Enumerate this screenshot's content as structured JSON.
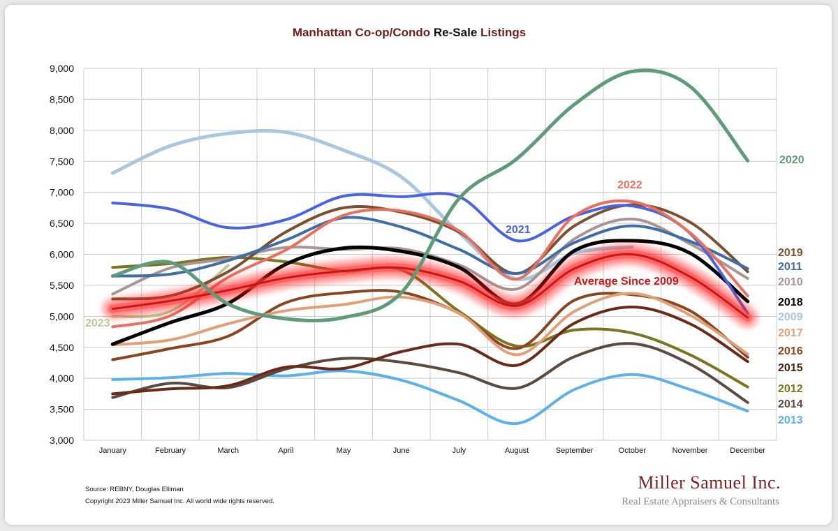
{
  "chart_data": {
    "type": "line",
    "title_parts": [
      "Manhattan Co-op/Condo",
      "Re-Sale",
      "Listings"
    ],
    "ylim": [
      3000,
      9000
    ],
    "yticks": [
      "3,000",
      "3,500",
      "4,000",
      "4,500",
      "5,000",
      "5,500",
      "6,000",
      "6,500",
      "7,000",
      "7,500",
      "8,000",
      "8,500",
      "9,000"
    ],
    "categories": [
      "January",
      "February",
      "March",
      "April",
      "May",
      "June",
      "July",
      "August",
      "September",
      "October",
      "November",
      "December"
    ],
    "grid": true,
    "series": [
      {
        "name": "2009",
        "color": "#a9c7df",
        "width": 5,
        "values": [
          7310,
          7750,
          7950,
          7970,
          7680,
          7250,
          6350,
          5600,
          6020,
          6120,
          null,
          null
        ]
      },
      {
        "name": "2013",
        "color": "#5eb0e8",
        "width": 4,
        "values": [
          3980,
          4010,
          4080,
          4040,
          4120,
          3970,
          3640,
          3270,
          3820,
          4060,
          3820,
          3470
        ]
      },
      {
        "name": "2014",
        "color": "#5a4a40",
        "width": 4,
        "values": [
          3690,
          3920,
          3850,
          4150,
          4320,
          4260,
          4090,
          3840,
          4350,
          4560,
          4230,
          3610
        ]
      },
      {
        "name": "2012",
        "color": "#7b7420",
        "width": 4,
        "values": [
          5790,
          5850,
          5950,
          5880,
          5730,
          5750,
          5080,
          4520,
          4780,
          4730,
          4380,
          3860
        ]
      },
      {
        "name": "2015",
        "color": "#6a2a18",
        "width": 4,
        "values": [
          3750,
          3830,
          3880,
          4180,
          4160,
          4430,
          4550,
          4210,
          4890,
          5150,
          4880,
          4270
        ]
      },
      {
        "name": "2016",
        "color": "#8a4520",
        "width": 4,
        "values": [
          4300,
          4480,
          4680,
          5220,
          5380,
          5390,
          5050,
          4480,
          5260,
          5350,
          5090,
          4340
        ]
      },
      {
        "name": "2017",
        "color": "#e0a078",
        "width": 4,
        "values": [
          4540,
          4620,
          4880,
          5090,
          5190,
          5310,
          5050,
          4380,
          5080,
          5370,
          5020,
          4390
        ]
      },
      {
        "name": "2023",
        "color": "#b6cc9a",
        "width": 4,
        "values": [
          5000,
          5080,
          5820,
          null,
          null,
          null,
          null,
          null,
          null,
          null,
          null,
          null
        ]
      },
      {
        "name": "2010",
        "color": "#a89594",
        "width": 4,
        "values": [
          5360,
          5780,
          5930,
          6110,
          6080,
          6090,
          5830,
          5440,
          6250,
          6570,
          6170,
          5610
        ]
      },
      {
        "name": "2019",
        "color": "#7a5030",
        "width": 4,
        "values": [
          5280,
          5330,
          5720,
          6360,
          6750,
          6680,
          6360,
          5690,
          6460,
          6800,
          6520,
          5720
        ]
      },
      {
        "name": "2011",
        "color": "#3f6da4",
        "width": 4,
        "values": [
          5650,
          5680,
          5900,
          6230,
          6590,
          6440,
          6080,
          5690,
          6190,
          6460,
          6210,
          5770
        ]
      },
      {
        "name": "2018",
        "color": "#000000",
        "width": 5,
        "values": [
          4550,
          4900,
          5210,
          5840,
          6100,
          6050,
          5790,
          5200,
          6060,
          6220,
          6020,
          5240
        ]
      },
      {
        "name": "2021",
        "color": "#4a63e0",
        "width": 4,
        "values": [
          6830,
          6730,
          6430,
          6560,
          6940,
          6930,
          6930,
          6220,
          6620,
          6780,
          6340,
          5050
        ]
      },
      {
        "name": "2022",
        "color": "#e8705e",
        "width": 4,
        "values": [
          4830,
          5010,
          5630,
          6070,
          6630,
          6700,
          6380,
          5600,
          6620,
          6850,
          6350,
          5330
        ]
      },
      {
        "name": "Average Since 2009",
        "color": "#cc1515",
        "width": 3,
        "glow": true,
        "values": [
          5120,
          5250,
          5420,
          5620,
          5730,
          5780,
          5570,
          5170,
          5770,
          6000,
          5640,
          4980
        ]
      },
      {
        "name": "2020",
        "color": "#5e9b78",
        "width": 5,
        "values": [
          5650,
          5870,
          5200,
          4960,
          4980,
          5380,
          6900,
          7540,
          8420,
          8950,
          8710,
          7510
        ]
      }
    ],
    "labels": [
      {
        "text": "2020",
        "color": "#5e9b78"
      },
      {
        "text": "2022",
        "color": "#e8705e"
      },
      {
        "text": "2021",
        "color": "#4a63e0"
      },
      {
        "text": "Average  Since 2009",
        "color": "#cc1515"
      },
      {
        "text": "2023",
        "color": "#b6cc9a"
      },
      {
        "text": "2019",
        "color": "#7a5030"
      },
      {
        "text": "2011",
        "color": "#3f6da4"
      },
      {
        "text": "2010",
        "color": "#a89594"
      },
      {
        "text": "2018",
        "color": "#000000"
      },
      {
        "text": "2009",
        "color": "#a9c7df"
      },
      {
        "text": "2017",
        "color": "#e0a078"
      },
      {
        "text": "2016",
        "color": "#8a4520"
      },
      {
        "text": "2015",
        "color": "#4a2010"
      },
      {
        "text": "2012",
        "color": "#7b7420"
      },
      {
        "text": "2014",
        "color": "#5a4a40"
      },
      {
        "text": "2013",
        "color": "#5eb0e8"
      }
    ]
  },
  "footer": {
    "source": "Source: REBNY, Douglas Elliman",
    "copyright": "Copyright 2023 Miller Samuel Inc.  All world wide rights reserved.",
    "brand": "Miller Samuel Inc.",
    "tagline": "Real Estate Appraisers & Consultants"
  },
  "colors": {
    "title_dark": "#6e1e1e",
    "title_black": "#111111"
  }
}
